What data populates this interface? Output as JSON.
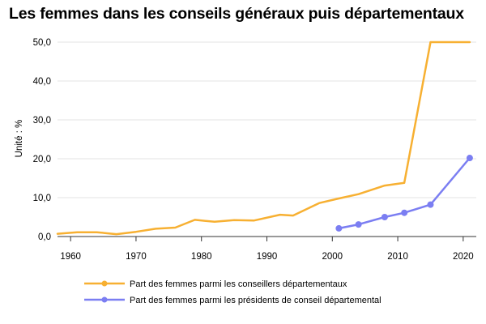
{
  "chart_data": {
    "type": "line",
    "title": "Les femmes dans les conseils généraux puis départementaux",
    "ylabel": "Unité : %",
    "xlabel": "",
    "xlim": [
      1958,
      2022
    ],
    "ylim": [
      0,
      50
    ],
    "grid": true,
    "legend_position": "bottom",
    "x_ticks": [
      1960,
      1970,
      1980,
      1990,
      2000,
      2010,
      2020
    ],
    "x_tick_labels": [
      "1960",
      "1970",
      "1980",
      "1990",
      "2000",
      "2010",
      "2020"
    ],
    "y_ticks": [
      0,
      10,
      20,
      30,
      40,
      50
    ],
    "y_tick_labels": [
      "0,0",
      "10,0",
      "20,0",
      "30,0",
      "40,0",
      "50,0"
    ],
    "series": [
      {
        "name": "Part des femmes parmi les conseillers départementaux",
        "color": "#f7b032",
        "markers": false,
        "x": [
          1958,
          1961,
          1964,
          1967,
          1970,
          1973,
          1976,
          1979,
          1982,
          1985,
          1988,
          1992,
          1994,
          1998,
          2001,
          2004,
          2008,
          2011,
          2015,
          2021
        ],
        "y": [
          0.7,
          1.1,
          1.1,
          0.6,
          1.2,
          2.0,
          2.3,
          4.3,
          3.8,
          4.2,
          4.1,
          5.6,
          5.4,
          8.6,
          9.8,
          10.9,
          13.1,
          13.8,
          50.0,
          50.0
        ]
      },
      {
        "name": "Part des femmes parmi les présidents de conseil départemental",
        "color": "#7b7ef2",
        "markers": true,
        "x": [
          2001,
          2004,
          2008,
          2011,
          2015,
          2021
        ],
        "y": [
          2.1,
          3.1,
          5.0,
          6.1,
          8.2,
          20.2
        ]
      }
    ]
  }
}
